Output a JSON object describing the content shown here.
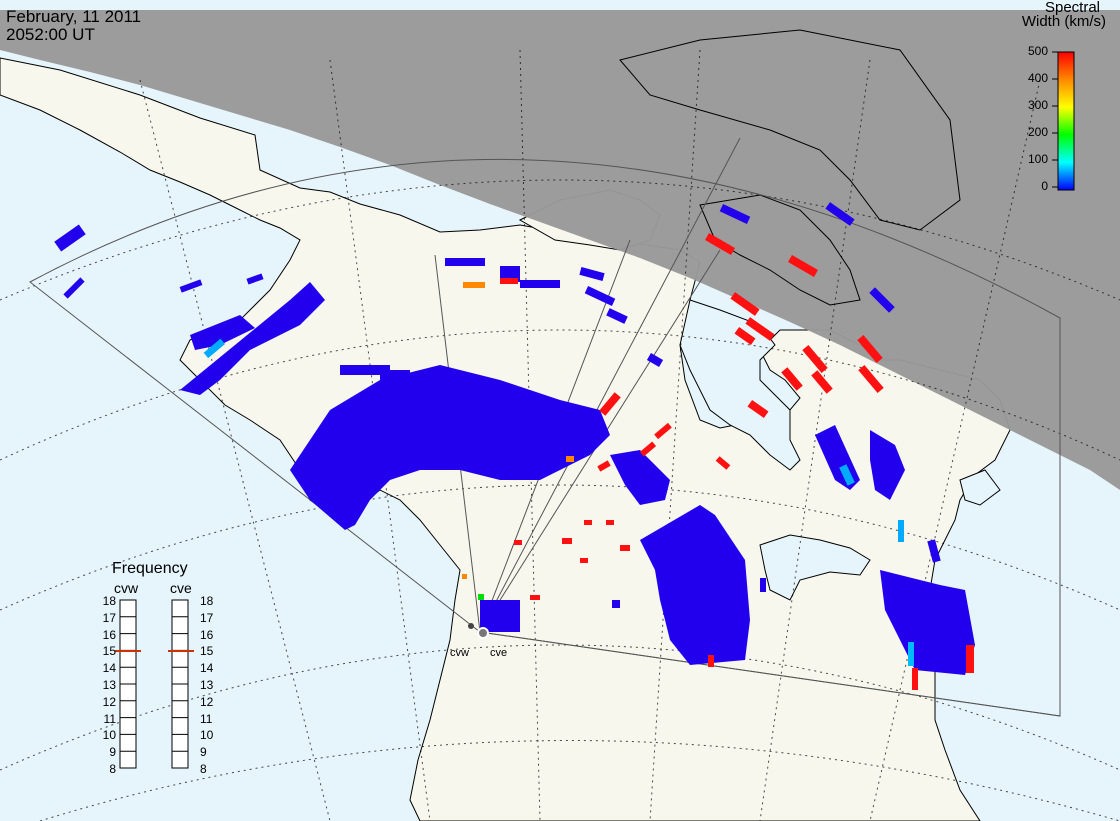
{
  "header": {
    "date": "February, 11 2011",
    "time": "2052:00 UT"
  },
  "colorbar": {
    "title_line1": "Spectral",
    "title_line2": "Width (km/s)",
    "ticks": [
      "500",
      "400",
      "300",
      "200",
      "100",
      "0"
    ],
    "gradient_colors": [
      "#ff0000",
      "#ff8800",
      "#ffff00",
      "#00ff00",
      "#00ffff",
      "#0000ff"
    ]
  },
  "frequency_panel": {
    "title": "Frequency",
    "columns": [
      {
        "label": "cvw",
        "selected": "15"
      },
      {
        "label": "cve",
        "selected": "15"
      }
    ],
    "ticks": [
      "18",
      "17",
      "16",
      "15",
      "14",
      "13",
      "12",
      "11",
      "10",
      "9",
      "8"
    ],
    "marker_color": "#cc3300"
  },
  "radars": [
    {
      "label": "cvw"
    },
    {
      "label": "cve"
    }
  ],
  "colors": {
    "ocean": "#e6f4fb",
    "land": "#f7f7ee",
    "night": "#999999",
    "low_width": "#2200ee",
    "high_width": "#ff1111"
  }
}
